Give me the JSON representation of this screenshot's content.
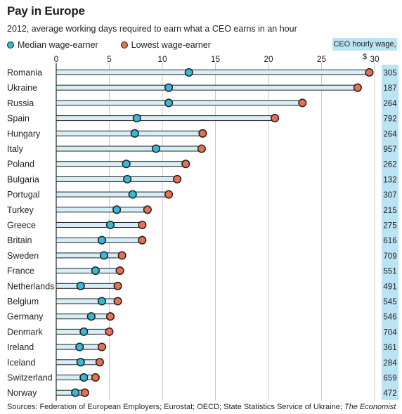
{
  "title": "Pay in Europe",
  "subtitle": "2012, average working days required to earn what a CEO earns in an hour",
  "legend": {
    "median_label": "Median wage-earner",
    "lowest_label": "Lowest wage-earner"
  },
  "ceo_header": "CEO hourly wage, $",
  "source": {
    "prefix": "Sources: Federation of European Employers; Eurostat; OECD; State Statistics Service of Ukraine; ",
    "italic": "The Economist"
  },
  "colors": {
    "median": "#38b7d8",
    "lowest": "#e86f4f",
    "ceo_panel": "#b9e4f3",
    "bar_fill": "#d7eef8"
  },
  "chart_data": {
    "type": "dot",
    "xlim": [
      0,
      30
    ],
    "x_ticks": [
      0,
      5,
      10,
      15,
      20,
      25,
      30
    ],
    "grid": true,
    "legend_placement": "top-left",
    "categories": [
      "Romania",
      "Ukraine",
      "Russia",
      "Spain",
      "Hungary",
      "Italy",
      "Poland",
      "Bulgaria",
      "Portugal",
      "Turkey",
      "Greece",
      "Britain",
      "Sweden",
      "France",
      "Netherlands",
      "Belgium",
      "Germany",
      "Denmark",
      "Ireland",
      "Iceland",
      "Switzerland",
      "Norway"
    ],
    "series": [
      {
        "name": "Median wage-earner",
        "values": [
          12.5,
          10.6,
          10.6,
          7.6,
          7.4,
          9.4,
          6.6,
          6.7,
          7.2,
          5.7,
          5.1,
          4.3,
          4.5,
          3.7,
          2.3,
          4.3,
          3.3,
          2.6,
          2.2,
          2.3,
          2.6,
          1.8
        ]
      },
      {
        "name": "Lowest wage-earner",
        "values": [
          29.5,
          28.4,
          23.2,
          20.6,
          13.8,
          13.7,
          12.2,
          11.4,
          10.6,
          8.6,
          8.1,
          8.1,
          6.2,
          6.0,
          5.8,
          5.8,
          5.1,
          5.0,
          4.3,
          4.1,
          3.7,
          2.7
        ]
      }
    ],
    "ceo_hourly_wage": [
      305,
      187,
      264,
      792,
      264,
      957,
      262,
      132,
      307,
      215,
      275,
      616,
      709,
      551,
      491,
      545,
      546,
      704,
      361,
      284,
      659,
      472
    ]
  }
}
